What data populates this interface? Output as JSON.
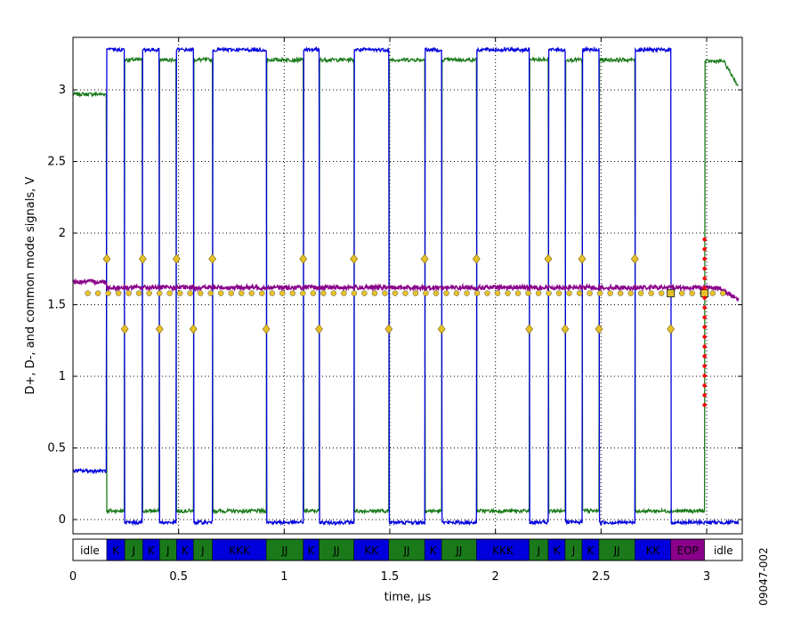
{
  "chart_data": {
    "type": "line",
    "xlabel": "time, µs",
    "ylabel": "D+, D-, and common mode signals, V",
    "figure_id": "09047-002",
    "xlim": [
      0,
      3.15
    ],
    "ylim": [
      -0.1,
      3.35
    ],
    "x_ticks": [
      "0",
      "0.5",
      "1",
      "1.5",
      "2",
      "2.5",
      "3"
    ],
    "y_ticks": [
      "0",
      "0.5",
      "1",
      "1.5",
      "2",
      "2.5",
      "3"
    ],
    "grid": "dotted",
    "colors": {
      "dplus": "#1a7a1a",
      "dminus": "#0000dd",
      "common": "#8a008a",
      "markers": "#e6c229",
      "eop_markers": "#ff0000"
    },
    "transitions_us": [
      0.16,
      0.245,
      0.33,
      0.41,
      0.49,
      0.57,
      0.66,
      0.915,
      1.09,
      1.165,
      1.33,
      1.495,
      1.665,
      1.745,
      1.91,
      2.16,
      2.25,
      2.33,
      2.41,
      2.49,
      2.66,
      2.83
    ],
    "series": [
      {
        "name": "D+",
        "start_us": 0,
        "idle_v": 2.97,
        "high_v": 3.21,
        "low_v": 0.06
      },
      {
        "name": "D-",
        "start_us": 0,
        "idle_v": 0.34,
        "high_v": 3.28,
        "low_v": -0.02
      },
      {
        "name": "common mode",
        "start_us": 0,
        "values_v": 1.62
      }
    ],
    "segments": [
      {
        "label": "idle",
        "state": "idle",
        "x0": 0,
        "x1": 0.16
      },
      {
        "label": "K",
        "state": "K",
        "x0": 0.16,
        "x1": 0.245
      },
      {
        "label": "J",
        "state": "J",
        "x0": 0.245,
        "x1": 0.33
      },
      {
        "label": "K",
        "state": "K",
        "x0": 0.33,
        "x1": 0.41
      },
      {
        "label": "J",
        "state": "J",
        "x0": 0.41,
        "x1": 0.49
      },
      {
        "label": "K",
        "state": "K",
        "x0": 0.49,
        "x1": 0.57
      },
      {
        "label": "J",
        "state": "J",
        "x0": 0.57,
        "x1": 0.66
      },
      {
        "label": "KKK",
        "state": "K",
        "x0": 0.66,
        "x1": 0.915
      },
      {
        "label": "JJ",
        "state": "J",
        "x0": 0.915,
        "x1": 1.09
      },
      {
        "label": "K",
        "state": "K",
        "x0": 1.09,
        "x1": 1.165
      },
      {
        "label": "JJ",
        "state": "J",
        "x0": 1.165,
        "x1": 1.33
      },
      {
        "label": "KK",
        "state": "K",
        "x0": 1.33,
        "x1": 1.495
      },
      {
        "label": "JJ",
        "state": "J",
        "x0": 1.495,
        "x1": 1.665
      },
      {
        "label": "K",
        "state": "K",
        "x0": 1.665,
        "x1": 1.745
      },
      {
        "label": "JJ",
        "state": "J",
        "x0": 1.745,
        "x1": 1.91
      },
      {
        "label": "KKK",
        "state": "K",
        "x0": 1.91,
        "x1": 2.16
      },
      {
        "label": "J",
        "state": "J",
        "x0": 2.16,
        "x1": 2.25
      },
      {
        "label": "K",
        "state": "K",
        "x0": 2.25,
        "x1": 2.33
      },
      {
        "label": "J",
        "state": "J",
        "x0": 2.33,
        "x1": 2.41
      },
      {
        "label": "K",
        "state": "K",
        "x0": 2.41,
        "x1": 2.49
      },
      {
        "label": "JJ",
        "state": "J",
        "x0": 2.49,
        "x1": 2.66
      },
      {
        "label": "KK",
        "state": "K",
        "x0": 2.66,
        "x1": 2.83
      },
      {
        "label": "EOP",
        "state": "EOP",
        "x0": 2.83,
        "x1": 2.99
      },
      {
        "label": "idle",
        "state": "idle",
        "x0": 2.99,
        "x1": 3.15
      }
    ]
  }
}
